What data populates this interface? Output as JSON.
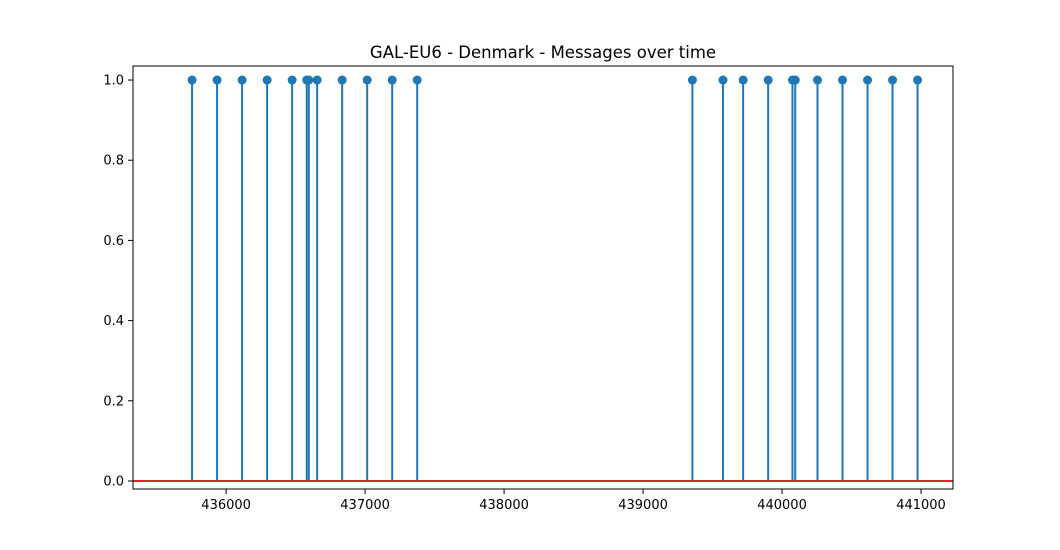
{
  "chart_data": {
    "type": "stem",
    "title": "GAL-EU6 - Denmark - Messages over time",
    "xlabel": "",
    "ylabel": "",
    "xlim": [
      435330,
      441230
    ],
    "ylim": [
      -0.02,
      1.035
    ],
    "x_ticks": [
      436000,
      437000,
      438000,
      439000,
      440000,
      441000
    ],
    "x_tick_labels": [
      "436000",
      "437000",
      "438000",
      "439000",
      "440000",
      "441000"
    ],
    "y_ticks": [
      0.0,
      0.2,
      0.4,
      0.6,
      0.8,
      1.0
    ],
    "y_tick_labels": [
      "0.0",
      "0.2",
      "0.4",
      "0.6",
      "0.8",
      "1.0"
    ],
    "baseline": 0,
    "grid": false,
    "x": [
      435755,
      435935,
      436115,
      436295,
      436475,
      436580,
      436595,
      436655,
      436835,
      437015,
      437195,
      437375,
      439355,
      439575,
      439720,
      439900,
      440075,
      440095,
      440255,
      440435,
      440615,
      440795,
      440975
    ],
    "y": [
      1,
      1,
      1,
      1,
      1,
      1,
      1,
      1,
      1,
      1,
      1,
      1,
      1,
      1,
      1,
      1,
      1,
      1,
      1,
      1,
      1,
      1,
      1
    ],
    "colors": {
      "stem": "#1f77b4",
      "marker": "#1f77b4",
      "baseline": "#d62728",
      "axis": "#000000"
    }
  }
}
